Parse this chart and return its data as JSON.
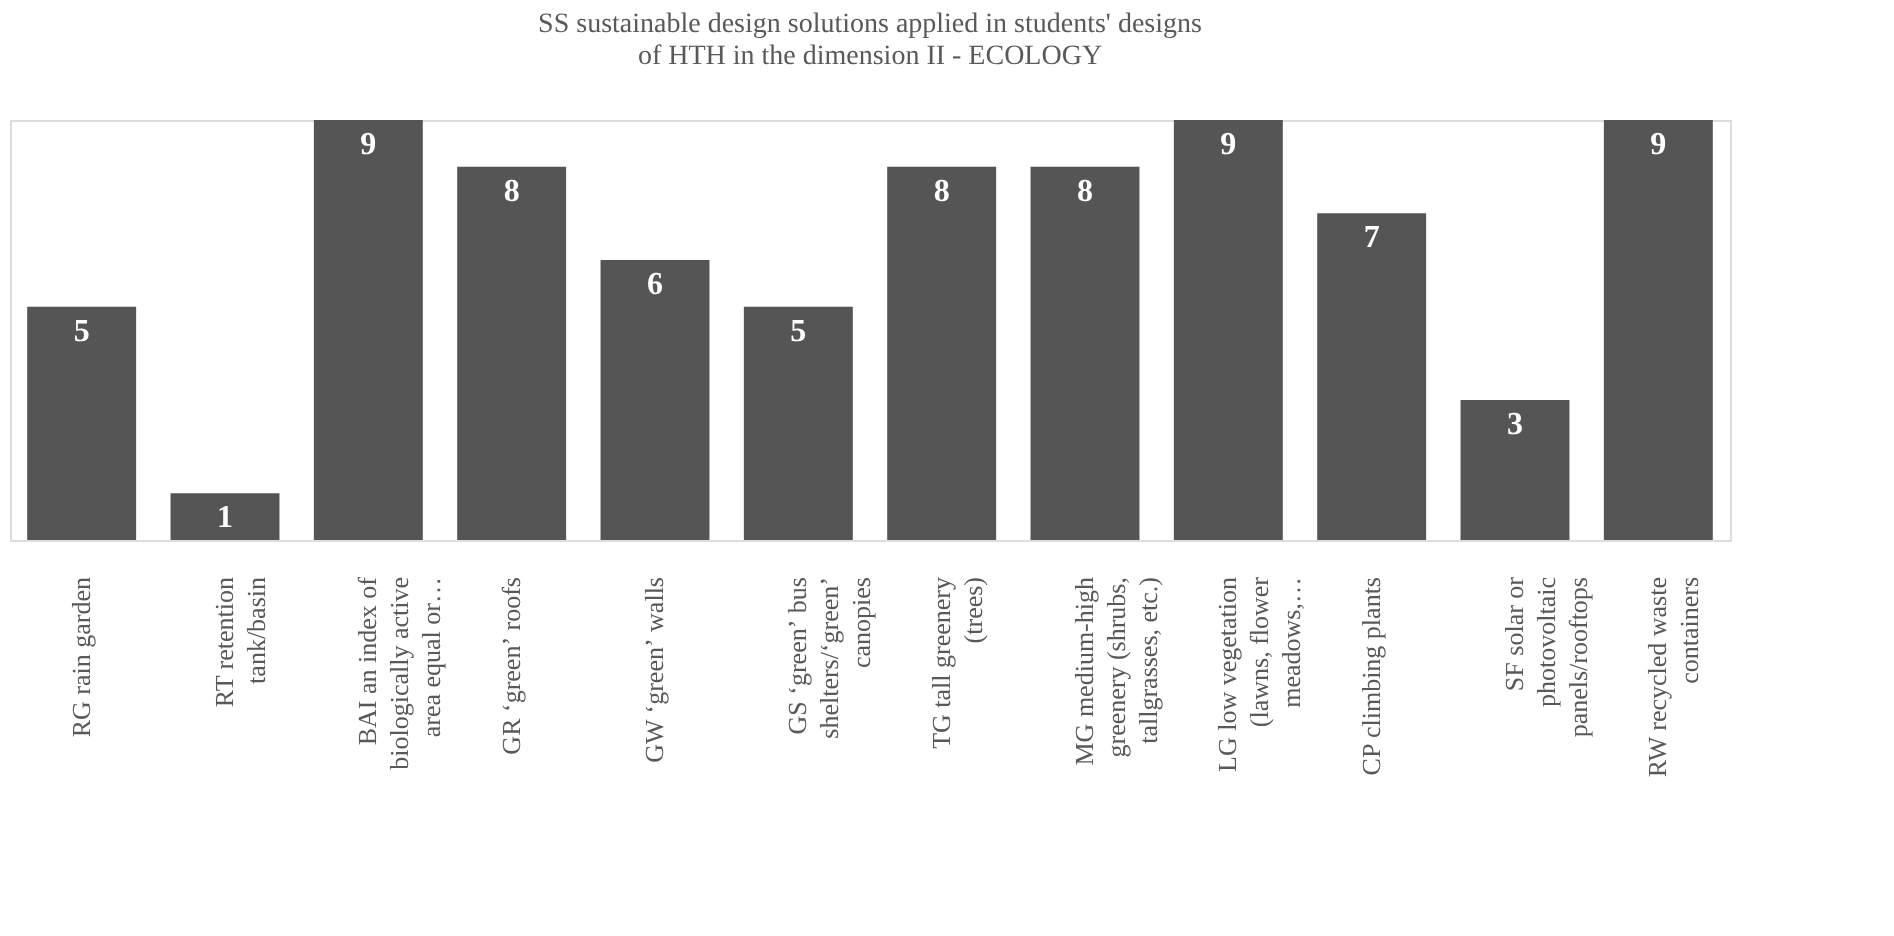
{
  "chart_data": {
    "type": "bar",
    "title": "SS sustainable design solutions applied  in students' designs of HTH in the dimension II - ECOLOGY",
    "categories": [
      "RG rain garden",
      "RT retention tank/basin",
      "BAI an index of biologically active area equal or…",
      "GR ʻgreenʼ roofs",
      "GW ʻgreenʼ walls",
      "GS ʻgreenʼ bus shelters/ʻgreenʼ canopies",
      "TG tall greenery (trees)",
      "MG medium-high greenery (shrubs, tallgrasses, etc.)",
      "LG low vegetation (lawns, flower meadows,…",
      "CP climbing plants",
      "SF solar or photovoltaic panels/rooftops",
      "RW recycled waste containers"
    ],
    "values": [
      5,
      1,
      9,
      8,
      6,
      5,
      8,
      8,
      9,
      7,
      3,
      9
    ],
    "color": "#555555",
    "data_labels": true,
    "grid": false
  }
}
